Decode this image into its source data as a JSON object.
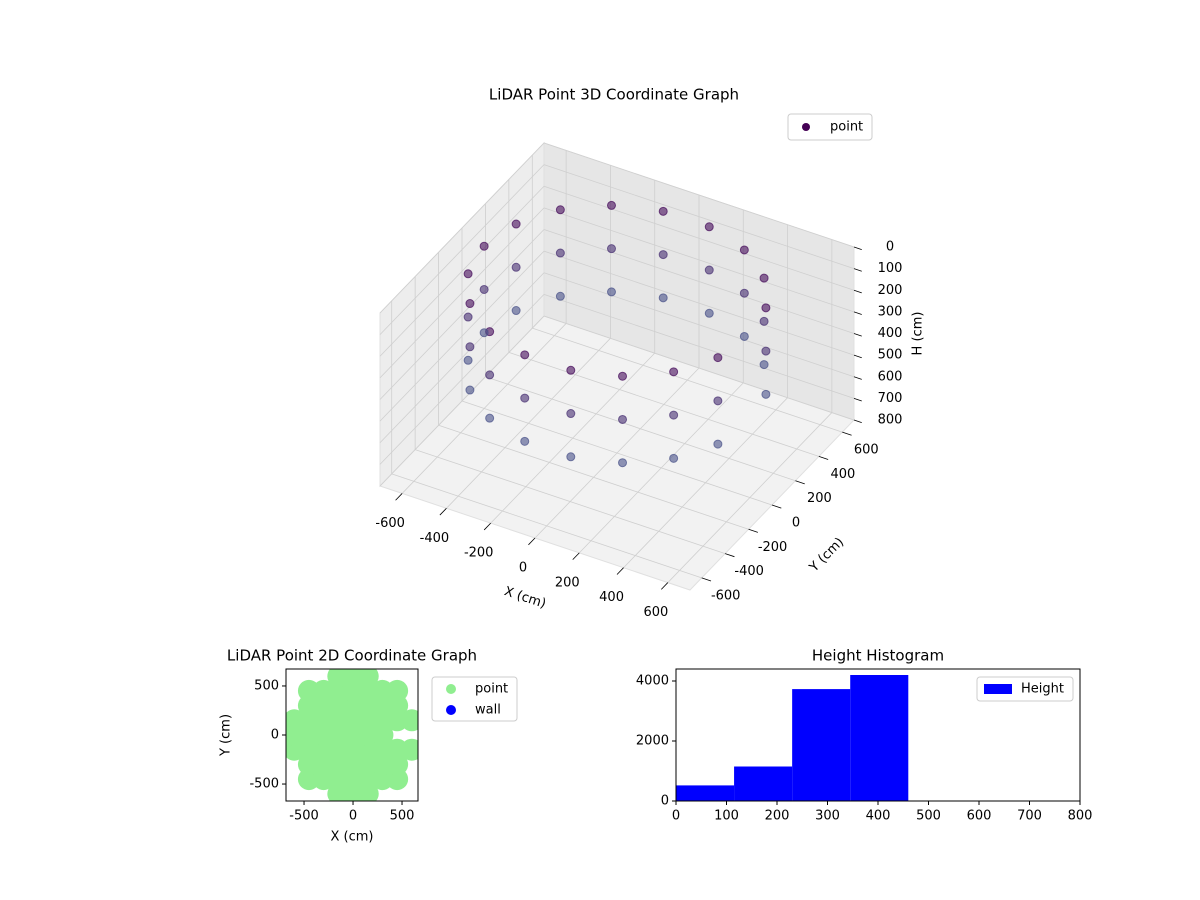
{
  "chart_data": [
    {
      "type": "scatter3d",
      "title": "LiDAR Point 3D Coordinate Graph",
      "xlabel": "X (cm)",
      "ylabel": "Y (cm)",
      "zlabel": "H (cm)",
      "xlim": [
        -700,
        700
      ],
      "ylim": [
        -700,
        700
      ],
      "zlim": [
        0,
        800
      ],
      "z_inverted": true,
      "xticks": [
        -600,
        -400,
        -200,
        0,
        200,
        400,
        600
      ],
      "yticks": [
        -600,
        -400,
        -200,
        0,
        200,
        400,
        600
      ],
      "zticks": [
        0,
        100,
        200,
        300,
        400,
        500,
        600,
        700,
        800
      ],
      "grid": true,
      "legend": "upper right",
      "colormap": [
        "#440154",
        "#4a8db0"
      ],
      "series": [
        {
          "name": "point",
          "color": "#440154",
          "x": [
            564,
            460,
            300,
            104,
            -104,
            -300,
            -460,
            -564,
            -600,
            -564,
            -460,
            -300,
            -104,
            104,
            300,
            460,
            564,
            564,
            460,
            300,
            104,
            -104,
            -300,
            -460,
            -564,
            -600,
            -564,
            -460,
            -300,
            -104,
            104,
            300,
            460,
            564,
            564,
            460,
            300,
            104,
            -104,
            -300,
            -460,
            -564,
            -600,
            -564,
            -460,
            -300,
            -104,
            104,
            300,
            460,
            564
          ],
          "y": [
            205,
            386,
            520,
            591,
            591,
            520,
            386,
            205,
            0,
            -205,
            -386,
            -520,
            -591,
            -591,
            -520,
            -386,
            -205,
            205,
            386,
            520,
            591,
            591,
            520,
            386,
            205,
            0,
            -205,
            -386,
            -520,
            -591,
            -591,
            -520,
            -386,
            -205,
            205,
            386,
            520,
            591,
            591,
            520,
            386,
            205,
            0,
            -205,
            -386,
            -520,
            -591,
            -591,
            -520,
            -386,
            -205
          ],
          "z": [
            50,
            50,
            50,
            50,
            50,
            50,
            50,
            50,
            50,
            50,
            50,
            50,
            50,
            50,
            50,
            50,
            50,
            250,
            250,
            250,
            250,
            250,
            250,
            250,
            250,
            250,
            250,
            250,
            250,
            250,
            250,
            250,
            250,
            250,
            450,
            450,
            450,
            450,
            450,
            450,
            450,
            450,
            450,
            450,
            450,
            450,
            450,
            450,
            450,
            450,
            450
          ]
        }
      ]
    },
    {
      "type": "scatter",
      "title": "LiDAR Point 2D Coordinate Graph",
      "xlabel": "X (cm)",
      "ylabel": "Y (cm)",
      "xlim": [
        -684,
        663
      ],
      "ylim": [
        -673,
        673
      ],
      "xticks": [
        -500,
        0,
        500
      ],
      "yticks": [
        -500,
        0,
        500
      ],
      "legend": "outside upper right",
      "series": [
        {
          "name": "point",
          "color": "#90ee90",
          "x": [
            -600,
            -600,
            -600,
            -450,
            -450,
            -450,
            -450,
            -450,
            -450,
            -450,
            -300,
            -300,
            -300,
            -300,
            -300,
            -300,
            -300,
            -150,
            -150,
            -150,
            -150,
            -150,
            -150,
            -150,
            -150,
            -150,
            0,
            0,
            0,
            0,
            0,
            0,
            0,
            0,
            0,
            150,
            150,
            150,
            150,
            150,
            150,
            150,
            150,
            150,
            300,
            300,
            300,
            300,
            300,
            300,
            300,
            450,
            450,
            450,
            450,
            450,
            450,
            600,
            600
          ],
          "y": [
            -150,
            0,
            150,
            -450,
            -300,
            -150,
            0,
            150,
            300,
            450,
            -450,
            -300,
            -150,
            0,
            150,
            300,
            450,
            -600,
            -450,
            -300,
            -150,
            0,
            150,
            300,
            450,
            600,
            -600,
            -450,
            -300,
            -150,
            0,
            150,
            300,
            450,
            600,
            -600,
            -450,
            -300,
            -150,
            0,
            150,
            300,
            450,
            600,
            -450,
            -300,
            -150,
            0,
            150,
            300,
            450,
            -450,
            -300,
            -150,
            150,
            300,
            450,
            -150,
            150
          ]
        },
        {
          "name": "wall",
          "color": "#0000ff",
          "x": [],
          "y": []
        }
      ]
    },
    {
      "type": "histogram",
      "title": "Height Histogram",
      "xlim": [
        0,
        800
      ],
      "ylim": [
        0,
        4400
      ],
      "xticks": [
        0,
        100,
        200,
        300,
        400,
        500,
        600,
        700,
        800
      ],
      "yticks": [
        0,
        2000,
        4000
      ],
      "legend": "upper right",
      "series": [
        {
          "name": "Height",
          "color": "#0000ff",
          "bins": [
            0,
            115,
            230,
            345,
            460
          ],
          "values": [
            520,
            1150,
            3730,
            4200
          ]
        }
      ]
    }
  ]
}
